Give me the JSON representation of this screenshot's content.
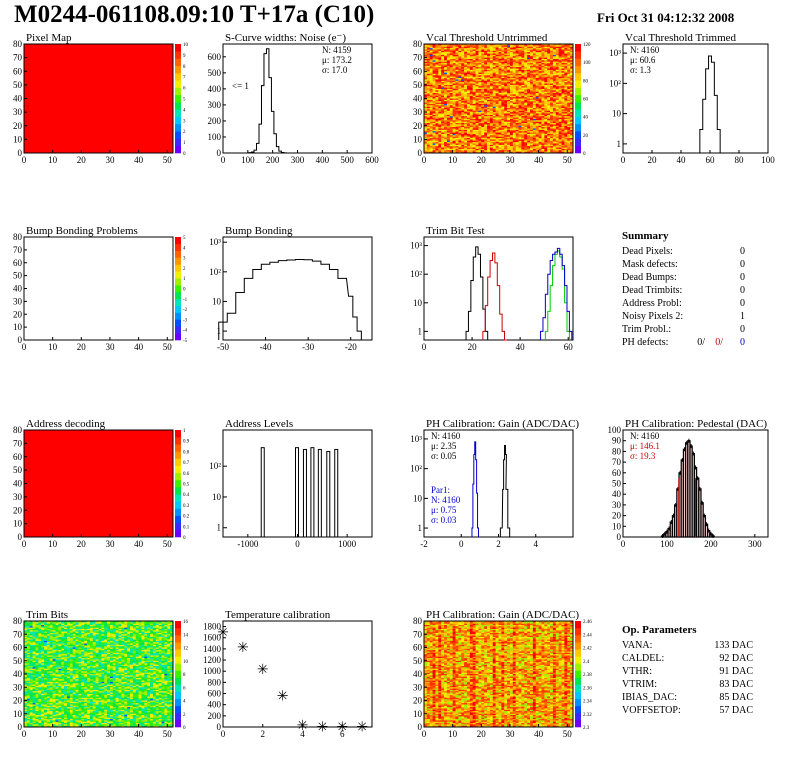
{
  "header": {
    "title": "M0244-061108.09:10 T+17a (C10)",
    "date": "Fri Oct 31 04:12:32 2008"
  },
  "palette": [
    "#6a00ff",
    "#3b28ff",
    "#0050ff",
    "#0090ff",
    "#00c8ff",
    "#00e6b4",
    "#00e650",
    "#3cf000",
    "#a0f000",
    "#f0f000",
    "#ffc800",
    "#ff9600",
    "#ff6400",
    "#ff3200",
    "#ff0000"
  ],
  "chart_data": [
    {
      "id": "pixel-map",
      "type": "heatmap",
      "title": "Pixel Map",
      "xticks": [
        0,
        10,
        20,
        30,
        40,
        50
      ],
      "yticks": [
        0,
        10,
        20,
        30,
        40,
        50,
        60,
        70,
        80
      ],
      "xlim": [
        0,
        52
      ],
      "ylim": [
        0,
        80
      ],
      "fill": "uniform",
      "fill_color": "#ff0000",
      "zticks": [
        "0",
        "1",
        "2",
        "3",
        "4",
        "5",
        "6",
        "7",
        "8",
        "9",
        "10"
      ]
    },
    {
      "id": "scurve-noise",
      "type": "line",
      "title": "S-Curve widths: Noise (e⁻)",
      "xlim": [
        0,
        600
      ],
      "ylim": [
        0,
        680
      ],
      "xticks": [
        0,
        100,
        200,
        300,
        400,
        500,
        600
      ],
      "yticks": [
        0,
        100,
        200,
        300,
        400,
        500,
        600
      ],
      "stats": [
        "N: 4159",
        "μ: 173.2",
        "σ: 17.0"
      ],
      "annotation": "<= 1",
      "x": [
        100,
        110,
        120,
        130,
        140,
        150,
        160,
        170,
        180,
        190,
        200,
        210,
        220,
        230,
        240,
        250,
        260
      ],
      "y": [
        0,
        2,
        6,
        18,
        60,
        180,
        420,
        620,
        650,
        470,
        260,
        120,
        40,
        12,
        3,
        1,
        0
      ]
    },
    {
      "id": "vcal-untrimmed",
      "type": "heatmap",
      "title": "Vcal Threshold Untrimmed",
      "xticks": [
        0,
        10,
        20,
        30,
        40,
        50
      ],
      "yticks": [
        0,
        10,
        20,
        30,
        40,
        50,
        60,
        70,
        80
      ],
      "xlim": [
        0,
        52
      ],
      "ylim": [
        0,
        80
      ],
      "fill": "noise",
      "palette_range": [
        9,
        14
      ],
      "zticks": [
        "0",
        "20",
        "40",
        "60",
        "80",
        "100",
        "120"
      ]
    },
    {
      "id": "vcal-trimmed",
      "type": "line",
      "title": "Vcal Threshold Trimmed",
      "yscale": "log",
      "xlim": [
        0,
        100
      ],
      "ylim": [
        0.5,
        2000
      ],
      "xticks": [
        0,
        20,
        40,
        60,
        80,
        100
      ],
      "ytick_labels": [
        "1",
        "10",
        "10²",
        "10³"
      ],
      "stats": [
        "N: 4160",
        "μ: 60.6",
        "σ:  1.3"
      ],
      "x": [
        54,
        56,
        58,
        60,
        62,
        64,
        66
      ],
      "y": [
        3,
        30,
        300,
        800,
        500,
        40,
        3
      ]
    },
    {
      "id": "bump-bonding-problems",
      "type": "heatmap",
      "title": "Bump Bonding Problems",
      "xticks": [
        0,
        10,
        20,
        30,
        40,
        50
      ],
      "yticks": [
        0,
        10,
        20,
        30,
        40,
        50,
        60,
        70,
        80
      ],
      "xlim": [
        0,
        52
      ],
      "ylim": [
        0,
        80
      ],
      "fill": "none",
      "zticks": [
        "-5",
        "-4",
        "-3",
        "-2",
        "-1",
        "0",
        "1",
        "2",
        "3",
        "4",
        "5"
      ]
    },
    {
      "id": "bump-bonding",
      "type": "line",
      "title": "Bump Bonding",
      "yscale": "log",
      "xlim": [
        -50,
        -15
      ],
      "ylim": [
        0.5,
        1500
      ],
      "xticks": [
        -50,
        -40,
        -30,
        -20
      ],
      "ytick_labels": [
        "1",
        "10",
        "10²",
        "10³"
      ],
      "x": [
        -50,
        -48,
        -46,
        -44,
        -42,
        -40,
        -38,
        -36,
        -34,
        -32,
        -30,
        -28,
        -26,
        -24,
        -22,
        -20,
        -19,
        -18
      ],
      "y": [
        2,
        4,
        20,
        60,
        120,
        180,
        210,
        240,
        250,
        260,
        255,
        230,
        180,
        120,
        60,
        15,
        3,
        1
      ]
    },
    {
      "id": "trim-bit-test",
      "type": "line",
      "title": "Trim Bit Test",
      "yscale": "log",
      "xlim": [
        0,
        62
      ],
      "ylim": [
        0.5,
        2000
      ],
      "xticks": [
        0,
        20,
        40,
        60
      ],
      "ytick_labels": [
        "1",
        "10",
        "10²",
        "10³"
      ],
      "series": [
        {
          "color": "#000000",
          "x": [
            18,
            19,
            20,
            21,
            22,
            23,
            24,
            25,
            26,
            27
          ],
          "y": [
            1,
            5,
            60,
            400,
            900,
            500,
            80,
            6,
            1,
            0.5
          ]
        },
        {
          "color": "#cc0000",
          "x": [
            25,
            26,
            27,
            28,
            29,
            30,
            31,
            32,
            33,
            34
          ],
          "y": [
            1,
            8,
            80,
            300,
            550,
            250,
            40,
            4,
            1,
            0.5
          ]
        },
        {
          "color": "#00cc00",
          "x": [
            51,
            52,
            53,
            54,
            55,
            56,
            57,
            58,
            59,
            60
          ],
          "y": [
            1,
            5,
            40,
            200,
            500,
            650,
            400,
            150,
            10,
            1
          ]
        },
        {
          "color": "#0000cc",
          "x": [
            49,
            50,
            51,
            52,
            53,
            54,
            55,
            56,
            57,
            58,
            59,
            60,
            61
          ],
          "y": [
            1,
            3,
            20,
            100,
            300,
            500,
            600,
            800,
            500,
            200,
            40,
            5,
            1
          ]
        }
      ]
    },
    {
      "id": "address-decoding",
      "type": "heatmap",
      "title": "Address decoding",
      "xticks": [
        0,
        10,
        20,
        30,
        40,
        50
      ],
      "yticks": [
        0,
        10,
        20,
        30,
        40,
        50,
        60,
        70,
        80
      ],
      "xlim": [
        0,
        52
      ],
      "ylim": [
        0,
        80
      ],
      "fill": "uniform",
      "fill_color": "#ff0000",
      "zticks": [
        "0",
        "0.1",
        "0.2",
        "0.3",
        "0.4",
        "0.5",
        "0.6",
        "0.7",
        "0.8",
        "0.9",
        "1"
      ]
    },
    {
      "id": "address-levels",
      "type": "bar",
      "title": "Address Levels",
      "yscale": "log",
      "xlim": [
        -1500,
        1500
      ],
      "ylim": [
        0.5,
        1500
      ],
      "xticks": [
        -1000,
        0,
        1000
      ],
      "ytick_labels": [
        "1",
        "10",
        "10²"
      ],
      "x": [
        -700,
        -10,
        150,
        300,
        450,
        620,
        780
      ],
      "values": [
        400,
        400,
        350,
        400,
        350,
        300,
        350
      ]
    },
    {
      "id": "ph-gain",
      "type": "line",
      "title": "PH Calibration: Gain (ADC/DAC)",
      "yscale": "log",
      "xlim": [
        -2,
        6
      ],
      "ylim": [
        0.5,
        2000
      ],
      "xticks": [
        -2,
        0,
        2,
        4
      ],
      "ytick_labels": [
        "1",
        "10",
        "10²",
        "10³"
      ],
      "stats": [
        "N: 4160",
        "μ: 2.35",
        "σ: 0.05"
      ],
      "stats2": [
        "Par1:",
        "N: 4160",
        "μ: 0.75",
        "σ: 0.03"
      ],
      "series": [
        {
          "color": "#000000",
          "x": [
            2.15,
            2.25,
            2.3,
            2.35,
            2.4,
            2.45,
            2.55
          ],
          "y": [
            1,
            20,
            200,
            600,
            300,
            20,
            1
          ]
        },
        {
          "color": "#0000cc",
          "x": [
            0.6,
            0.65,
            0.7,
            0.75,
            0.8,
            0.85,
            0.9
          ],
          "y": [
            1,
            30,
            300,
            800,
            200,
            15,
            1
          ]
        }
      ]
    },
    {
      "id": "ph-pedestal",
      "type": "bar",
      "title": "PH Calibration: Pedestal (DAC)",
      "xlim": [
        0,
        330
      ],
      "ylim": [
        0,
        100
      ],
      "xticks": [
        0,
        100,
        200,
        300
      ],
      "yticks": [
        0,
        10,
        20,
        30,
        40,
        50,
        60,
        70,
        80,
        90,
        100
      ],
      "stats": [
        "N: 4160"
      ],
      "stats_red": [
        "μ: 146.1",
        "σ: 19.3"
      ],
      "x": [
        90,
        95,
        100,
        105,
        110,
        115,
        120,
        125,
        130,
        135,
        140,
        145,
        150,
        155,
        160,
        165,
        170,
        175,
        180,
        185,
        190,
        195,
        200,
        205
      ],
      "values": [
        1,
        3,
        5,
        8,
        14,
        20,
        30,
        45,
        60,
        72,
        82,
        88,
        90,
        85,
        78,
        65,
        55,
        45,
        32,
        20,
        12,
        6,
        3,
        1
      ],
      "markers": [
        127,
        165
      ]
    },
    {
      "id": "trim-bits",
      "type": "heatmap",
      "title": "Trim Bits",
      "xticks": [
        0,
        10,
        20,
        30,
        40,
        50
      ],
      "yticks": [
        0,
        10,
        20,
        30,
        40,
        50,
        60,
        70,
        80
      ],
      "xlim": [
        0,
        52
      ],
      "ylim": [
        0,
        80
      ],
      "fill": "noise",
      "palette_range": [
        5,
        9
      ],
      "zticks": [
        "0",
        "2",
        "4",
        "6",
        "8",
        "10",
        "12",
        "14",
        "16"
      ]
    },
    {
      "id": "temperature-calibration",
      "type": "scatter",
      "title": "Temperature calibration",
      "xlim": [
        0,
        7.5
      ],
      "ylim": [
        0,
        1900
      ],
      "xticks": [
        0,
        2,
        4,
        6
      ],
      "yticks": [
        0,
        200,
        400,
        600,
        800,
        1000,
        1200,
        1400,
        1600,
        1800
      ],
      "x": [
        0,
        1,
        2,
        3,
        4,
        5,
        6,
        7
      ],
      "y": [
        1720,
        1450,
        1060,
        580,
        50,
        30,
        30,
        30
      ]
    },
    {
      "id": "ph-gain-map",
      "type": "heatmap",
      "title": "PH Calibration: Gain (ADC/DAC)",
      "xticks": [
        0,
        10,
        20,
        30,
        40,
        50
      ],
      "yticks": [
        0,
        10,
        20,
        30,
        40,
        50,
        60,
        70,
        80
      ],
      "xlim": [
        0,
        52
      ],
      "ylim": [
        0,
        80
      ],
      "fill": "columns",
      "palette_range": [
        9,
        14
      ],
      "zticks": [
        "2.3",
        "2.32",
        "2.34",
        "2.36",
        "2.38",
        "2.4",
        "2.42",
        "2.44",
        "2.46"
      ]
    }
  ],
  "summary": {
    "title": "Summary",
    "rows": [
      {
        "label": "Dead Pixels:",
        "value": "0"
      },
      {
        "label": "Mask defects:",
        "value": "0"
      },
      {
        "label": "Dead Bumps:",
        "value": "0"
      },
      {
        "label": "Dead Trimbits:",
        "value": "0"
      },
      {
        "label": "Address Probl:",
        "value": "0"
      },
      {
        "label": "Noisy Pixels 2:",
        "value": "1"
      },
      {
        "label": "Trim Probl.:",
        "value": "0"
      }
    ],
    "ph_label": "PH defects:",
    "ph_values": [
      "0/",
      "0/",
      "0"
    ],
    "ph_colors": [
      "#000000",
      "#cc0000",
      "#0000cc"
    ]
  },
  "op_params": {
    "title": "Op. Parameters",
    "rows": [
      {
        "label": "VANA:",
        "value": "133 DAC"
      },
      {
        "label": "CALDEL:",
        "value": "92 DAC"
      },
      {
        "label": "VTHR:",
        "value": "91 DAC"
      },
      {
        "label": "VTRIM:",
        "value": "83 DAC"
      },
      {
        "label": "IBIAS_DAC:",
        "value": "85 DAC"
      },
      {
        "label": "VOFFSETOP:",
        "value": "57 DAC"
      }
    ]
  }
}
